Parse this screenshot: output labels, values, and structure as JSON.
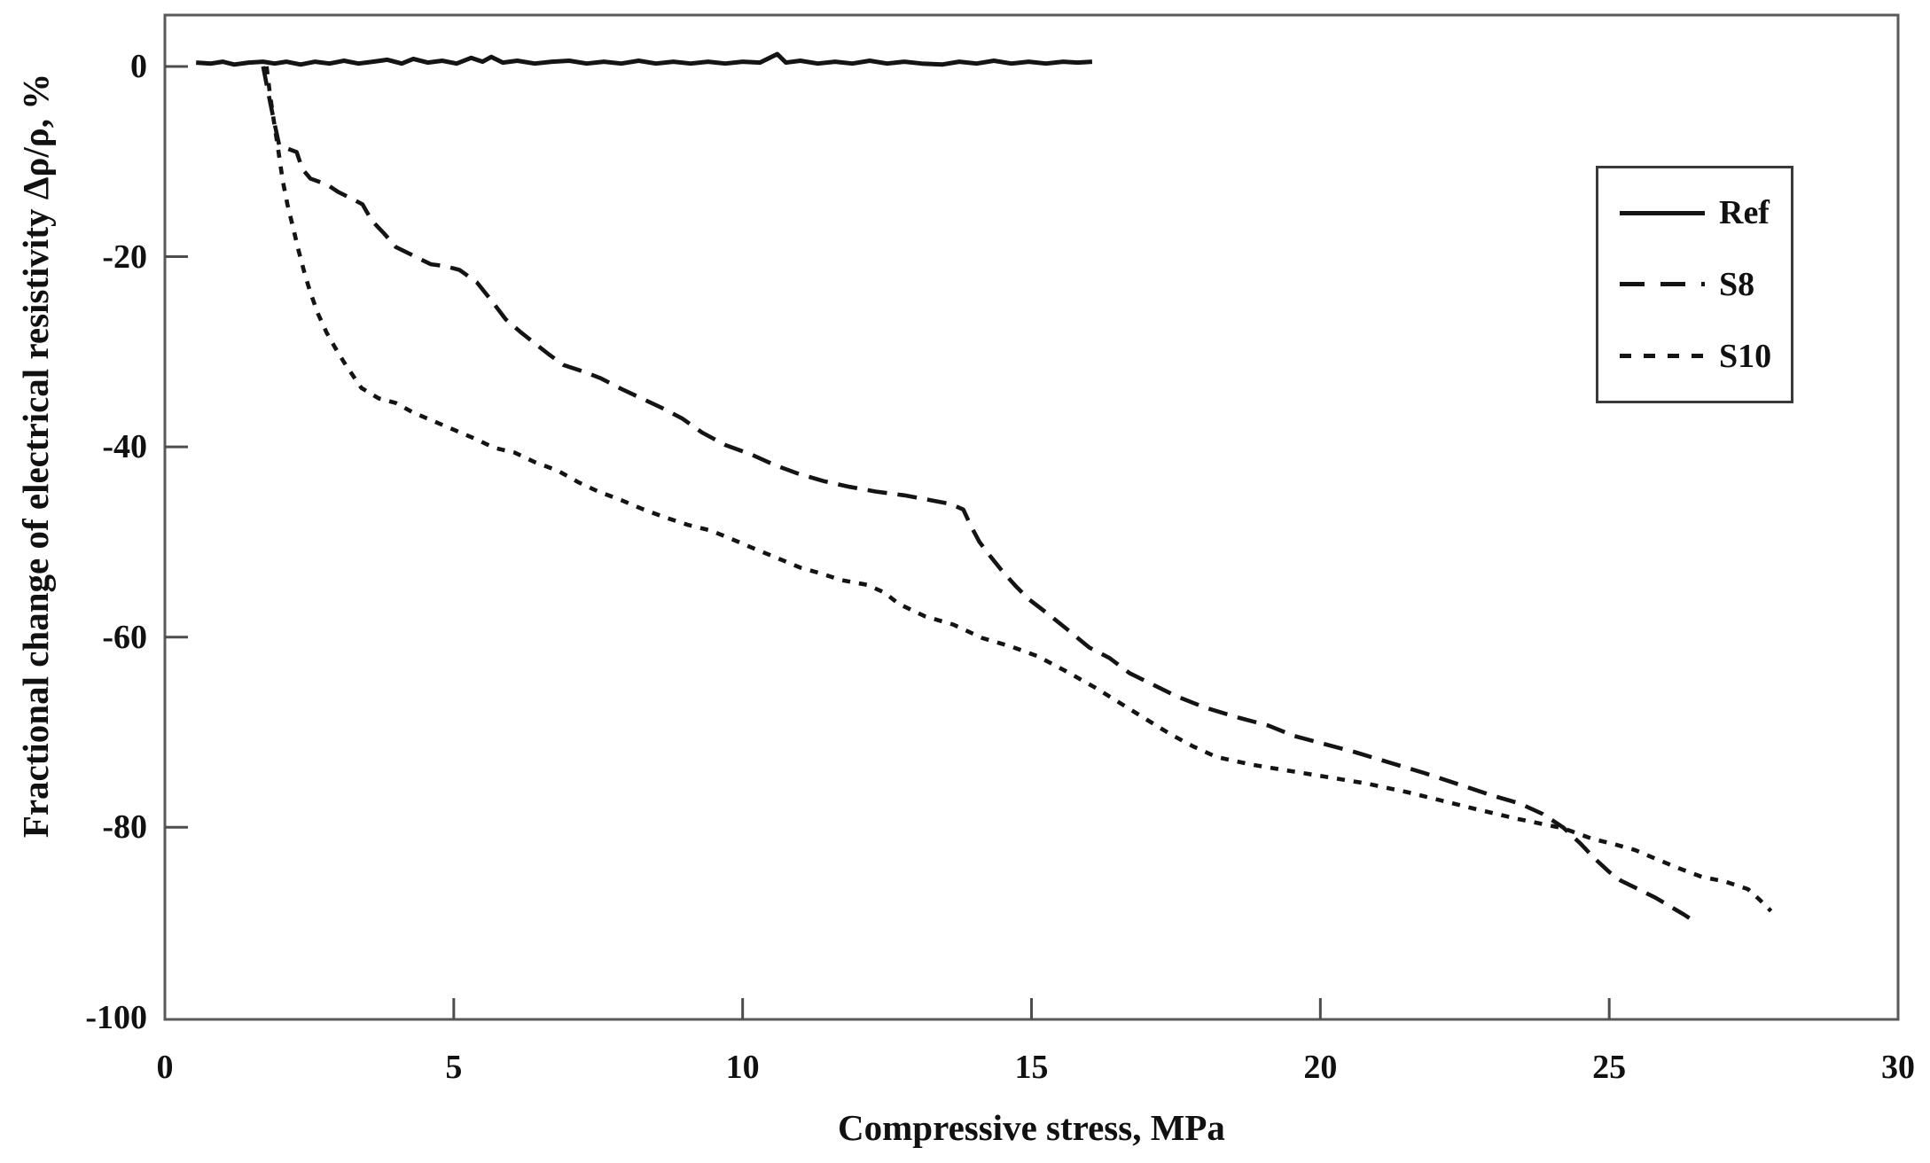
{
  "figure": {
    "background": "#ffffff",
    "line_color": "#141414",
    "axis_color": "#595959",
    "text_color": "#111111"
  },
  "chart_data": {
    "type": "line",
    "title": "",
    "xlabel": "Compressive stress, MPa",
    "ylabel": "Fractional change of electrical resistivity Δρ/ρ, %",
    "xlim": [
      0,
      30
    ],
    "ylim": [
      -100.2,
      5.4
    ],
    "x_ticks": [
      0,
      5,
      10,
      15,
      20,
      25,
      30
    ],
    "y_ticks": [
      0,
      -20,
      -40,
      -60,
      -80,
      -100
    ],
    "grid": false,
    "legend_position": "top-right",
    "series": [
      {
        "name": "Ref",
        "style": "solid",
        "points": [
          [
            0.54,
            0.4
          ],
          [
            0.8,
            0.3
          ],
          [
            1.0,
            0.5
          ],
          [
            1.2,
            0.2
          ],
          [
            1.45,
            0.4
          ],
          [
            1.7,
            0.5
          ],
          [
            1.9,
            0.3
          ],
          [
            2.1,
            0.5
          ],
          [
            2.35,
            0.2
          ],
          [
            2.6,
            0.5
          ],
          [
            2.85,
            0.3
          ],
          [
            3.1,
            0.6
          ],
          [
            3.35,
            0.3
          ],
          [
            3.6,
            0.5
          ],
          [
            3.85,
            0.7
          ],
          [
            4.1,
            0.3
          ],
          [
            4.3,
            0.8
          ],
          [
            4.55,
            0.4
          ],
          [
            4.8,
            0.6
          ],
          [
            5.05,
            0.3
          ],
          [
            5.3,
            0.9
          ],
          [
            5.5,
            0.5
          ],
          [
            5.65,
            1.0
          ],
          [
            5.85,
            0.4
          ],
          [
            6.1,
            0.6
          ],
          [
            6.4,
            0.3
          ],
          [
            6.7,
            0.5
          ],
          [
            7.0,
            0.6
          ],
          [
            7.3,
            0.3
          ],
          [
            7.6,
            0.5
          ],
          [
            7.9,
            0.3
          ],
          [
            8.2,
            0.6
          ],
          [
            8.5,
            0.3
          ],
          [
            8.8,
            0.5
          ],
          [
            9.1,
            0.3
          ],
          [
            9.4,
            0.5
          ],
          [
            9.7,
            0.3
          ],
          [
            10.0,
            0.5
          ],
          [
            10.3,
            0.4
          ],
          [
            10.6,
            1.3
          ],
          [
            10.75,
            0.4
          ],
          [
            11.0,
            0.6
          ],
          [
            11.3,
            0.3
          ],
          [
            11.6,
            0.5
          ],
          [
            11.9,
            0.3
          ],
          [
            12.2,
            0.6
          ],
          [
            12.5,
            0.3
          ],
          [
            12.8,
            0.5
          ],
          [
            13.1,
            0.3
          ],
          [
            13.45,
            0.2
          ],
          [
            13.75,
            0.5
          ],
          [
            14.05,
            0.3
          ],
          [
            14.35,
            0.6
          ],
          [
            14.65,
            0.3
          ],
          [
            14.95,
            0.5
          ],
          [
            15.25,
            0.3
          ],
          [
            15.55,
            0.5
          ],
          [
            15.8,
            0.4
          ],
          [
            16.05,
            0.5
          ]
        ]
      },
      {
        "name": "S8",
        "style": "long-dash",
        "points": [
          [
            1.7,
            0
          ],
          [
            1.78,
            -2.5
          ],
          [
            1.88,
            -5.5
          ],
          [
            1.98,
            -8.3
          ],
          [
            2.1,
            -8.6
          ],
          [
            2.28,
            -9.0
          ],
          [
            2.38,
            -10.8
          ],
          [
            2.52,
            -11.8
          ],
          [
            2.8,
            -12.4
          ],
          [
            3.0,
            -13.2
          ],
          [
            3.2,
            -13.8
          ],
          [
            3.42,
            -14.5
          ],
          [
            3.58,
            -16.2
          ],
          [
            3.8,
            -17.6
          ],
          [
            4.0,
            -19.0
          ],
          [
            4.3,
            -19.9
          ],
          [
            4.6,
            -20.8
          ],
          [
            4.85,
            -21.0
          ],
          [
            5.1,
            -21.4
          ],
          [
            5.4,
            -22.7
          ],
          [
            5.65,
            -24.6
          ],
          [
            5.9,
            -26.6
          ],
          [
            6.15,
            -27.9
          ],
          [
            6.4,
            -29.1
          ],
          [
            6.65,
            -30.3
          ],
          [
            6.9,
            -31.4
          ],
          [
            7.25,
            -32.1
          ],
          [
            7.55,
            -32.8
          ],
          [
            7.9,
            -33.9
          ],
          [
            8.25,
            -34.9
          ],
          [
            8.6,
            -35.9
          ],
          [
            8.95,
            -37.0
          ],
          [
            9.3,
            -38.5
          ],
          [
            9.7,
            -39.8
          ],
          [
            10.15,
            -40.8
          ],
          [
            10.55,
            -41.9
          ],
          [
            10.95,
            -42.8
          ],
          [
            11.4,
            -43.6
          ],
          [
            11.85,
            -44.2
          ],
          [
            12.3,
            -44.7
          ],
          [
            12.8,
            -45.1
          ],
          [
            13.25,
            -45.6
          ],
          [
            13.6,
            -46.0
          ],
          [
            13.82,
            -46.6
          ],
          [
            13.95,
            -48.3
          ],
          [
            14.1,
            -50.0
          ],
          [
            14.3,
            -51.6
          ],
          [
            14.5,
            -53.1
          ],
          [
            14.72,
            -54.6
          ],
          [
            14.95,
            -56.0
          ],
          [
            15.25,
            -57.4
          ],
          [
            15.6,
            -59.1
          ],
          [
            16.0,
            -61.1
          ],
          [
            16.35,
            -62.2
          ],
          [
            16.7,
            -63.8
          ],
          [
            17.1,
            -65.0
          ],
          [
            17.5,
            -66.2
          ],
          [
            18.0,
            -67.4
          ],
          [
            18.6,
            -68.5
          ],
          [
            19.1,
            -69.3
          ],
          [
            19.55,
            -70.4
          ],
          [
            20.1,
            -71.3
          ],
          [
            20.6,
            -72.1
          ],
          [
            21.2,
            -73.2
          ],
          [
            21.8,
            -74.3
          ],
          [
            22.4,
            -75.5
          ],
          [
            23.0,
            -76.7
          ],
          [
            23.45,
            -77.5
          ],
          [
            23.85,
            -78.6
          ],
          [
            24.2,
            -80.0
          ],
          [
            24.5,
            -81.7
          ],
          [
            24.75,
            -83.3
          ],
          [
            25.0,
            -84.7
          ],
          [
            25.2,
            -85.6
          ],
          [
            25.5,
            -86.5
          ],
          [
            25.8,
            -87.4
          ],
          [
            26.05,
            -88.3
          ],
          [
            26.3,
            -89.2
          ],
          [
            26.5,
            -90.0
          ]
        ]
      },
      {
        "name": "S10",
        "style": "short-dash",
        "points": [
          [
            1.76,
            0
          ],
          [
            1.82,
            -3.0
          ],
          [
            1.88,
            -5.5
          ],
          [
            1.93,
            -7.5
          ],
          [
            1.98,
            -9.5
          ],
          [
            2.04,
            -12.0
          ],
          [
            2.12,
            -14.5
          ],
          [
            2.22,
            -17.0
          ],
          [
            2.32,
            -19.5
          ],
          [
            2.42,
            -21.8
          ],
          [
            2.52,
            -23.8
          ],
          [
            2.65,
            -26.0
          ],
          [
            2.8,
            -28.0
          ],
          [
            2.95,
            -29.6
          ],
          [
            3.13,
            -31.4
          ],
          [
            3.4,
            -33.8
          ],
          [
            3.7,
            -34.9
          ],
          [
            4.0,
            -35.4
          ],
          [
            4.3,
            -36.4
          ],
          [
            4.65,
            -37.3
          ],
          [
            5.0,
            -38.2
          ],
          [
            5.35,
            -39.1
          ],
          [
            5.7,
            -40.1
          ],
          [
            6.05,
            -40.6
          ],
          [
            6.4,
            -41.6
          ],
          [
            6.8,
            -42.5
          ],
          [
            7.15,
            -43.7
          ],
          [
            7.5,
            -44.7
          ],
          [
            7.9,
            -45.6
          ],
          [
            8.25,
            -46.5
          ],
          [
            8.65,
            -47.4
          ],
          [
            9.05,
            -48.2
          ],
          [
            9.45,
            -48.8
          ],
          [
            9.85,
            -49.8
          ],
          [
            10.2,
            -50.7
          ],
          [
            10.6,
            -51.7
          ],
          [
            11.0,
            -52.7
          ],
          [
            11.35,
            -53.3
          ],
          [
            11.7,
            -54.0
          ],
          [
            12.15,
            -54.5
          ],
          [
            12.45,
            -55.3
          ],
          [
            12.7,
            -56.5
          ],
          [
            13.15,
            -57.8
          ],
          [
            13.65,
            -58.7
          ],
          [
            14.15,
            -60.1
          ],
          [
            14.65,
            -61.0
          ],
          [
            15.1,
            -62.0
          ],
          [
            15.6,
            -63.6
          ],
          [
            16.1,
            -65.3
          ],
          [
            16.55,
            -67.0
          ],
          [
            17.0,
            -68.7
          ],
          [
            17.4,
            -70.2
          ],
          [
            17.8,
            -71.5
          ],
          [
            18.2,
            -72.6
          ],
          [
            18.8,
            -73.4
          ],
          [
            19.5,
            -74.1
          ],
          [
            20.1,
            -74.7
          ],
          [
            20.8,
            -75.4
          ],
          [
            21.5,
            -76.3
          ],
          [
            22.1,
            -77.2
          ],
          [
            22.7,
            -78.1
          ],
          [
            23.4,
            -79.1
          ],
          [
            23.8,
            -79.6
          ],
          [
            24.2,
            -80.1
          ],
          [
            24.7,
            -81.2
          ],
          [
            25.1,
            -81.8
          ],
          [
            25.45,
            -82.4
          ],
          [
            25.8,
            -83.3
          ],
          [
            26.2,
            -84.3
          ],
          [
            26.6,
            -85.2
          ],
          [
            27.0,
            -85.7
          ],
          [
            27.4,
            -86.5
          ],
          [
            27.6,
            -87.6
          ],
          [
            27.8,
            -88.8
          ]
        ]
      }
    ]
  }
}
